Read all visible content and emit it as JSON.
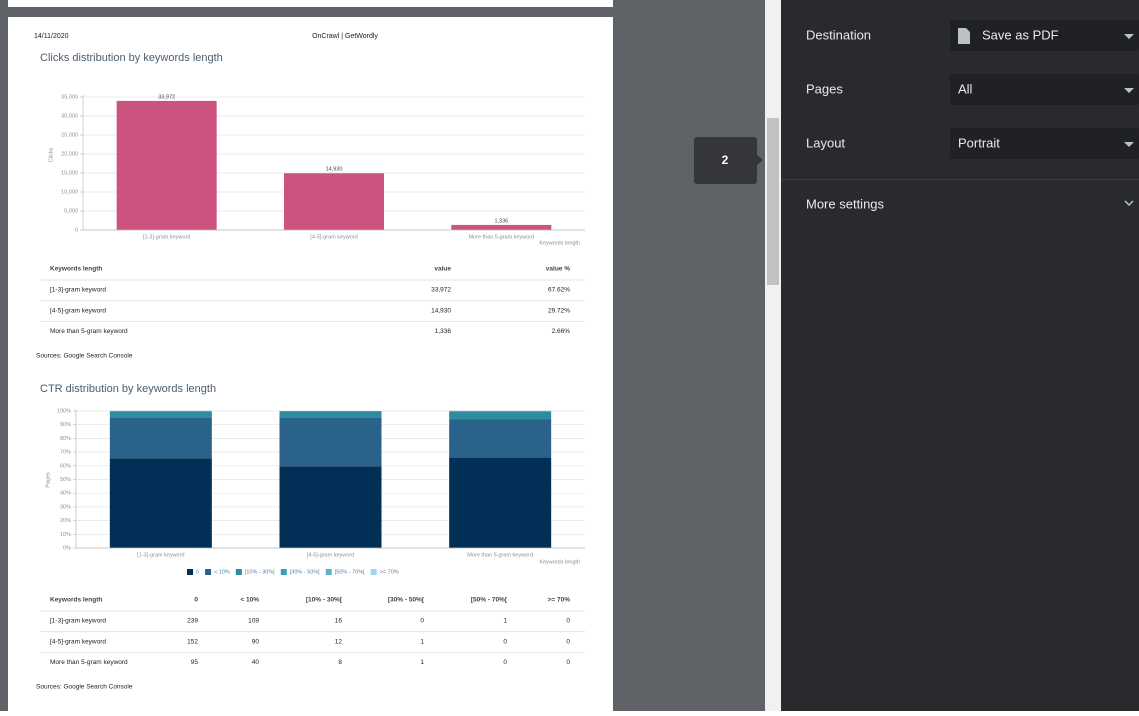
{
  "header": {
    "date": "14/11/2020",
    "site": "OnCrawl | GetWordly"
  },
  "clicks_chart": {
    "type": "bar",
    "title": "Clicks distribution by keywords length",
    "y_label": "Clicks",
    "x_label": "Keywords length",
    "categories": [
      "[1-3]-gram keyword",
      "[4-5]-gram keyword",
      "More than 5-gram keyword"
    ],
    "values": [
      33972,
      14930,
      1336
    ],
    "value_labels": [
      "33,972",
      "14,930",
      "1,336"
    ],
    "color": "#cc527f",
    "ylim": [
      0,
      35000
    ],
    "yticks": [
      0,
      {
        "value": 5000,
        "label": "5,000"
      },
      {
        "value": 10000,
        "label": "10,000"
      },
      {
        "value": 15000,
        "label": "15,000"
      },
      {
        "value": 20000,
        "label": "20,000"
      },
      {
        "value": 25000,
        "label": "25,000"
      },
      {
        "value": 30000,
        "label": "30,000"
      },
      {
        "value": 35000,
        "label": "35,000"
      }
    ],
    "grid": true
  },
  "clicks_table": {
    "headers": [
      "Keywords length",
      "value",
      "value %"
    ],
    "rows": [
      [
        "[1-3]-gram keyword",
        "33,972",
        "67.62%"
      ],
      [
        "[4-5]-gram keyword",
        "14,930",
        "29.72%"
      ],
      [
        "More than 5-gram keyword",
        "1,336",
        "2.66%"
      ]
    ]
  },
  "clicks_source": "Sources: Google Search Console",
  "ctr_chart": {
    "type": "stacked_bar",
    "title": "CTR distribution by keywords length",
    "y_label": "Pages",
    "x_label": "Keywords length",
    "categories": [
      "[1-3]-gram keyword",
      "[4-5]-gram keyword",
      "More than 5-gram keyword"
    ],
    "series": [
      {
        "name": "0",
        "color": "#012f56",
        "values": [
          65.5,
          59.6,
          66.0
        ]
      },
      {
        "name": "< 10%",
        "color": "#2b6289",
        "values": [
          29.9,
          35.3,
          27.8
        ]
      },
      {
        "name": "[10% - 30%[",
        "color": "#2d8c9e",
        "values": [
          4.4,
          4.7,
          5.6
        ]
      },
      {
        "name": "[30% - 50%[",
        "color": "#3aa0b5",
        "values": [
          0,
          0.4,
          0.7
        ]
      },
      {
        "name": "[50% - 70%[",
        "color": "#58b3cb",
        "values": [
          0.3,
          0,
          0
        ]
      },
      {
        "name": ">= 70%",
        "color": "#9fd8ee",
        "values": [
          0,
          0,
          0
        ]
      }
    ],
    "ylim": [
      0,
      100
    ],
    "yticks": [
      {
        "value": 0,
        "label": "0%"
      },
      {
        "value": 10,
        "label": "10%"
      },
      {
        "value": 20,
        "label": "20%"
      },
      {
        "value": 30,
        "label": "30%"
      },
      {
        "value": 40,
        "label": "40%"
      },
      {
        "value": 50,
        "label": "50%"
      },
      {
        "value": 60,
        "label": "60%"
      },
      {
        "value": 70,
        "label": "70%"
      },
      {
        "value": 80,
        "label": "80%"
      },
      {
        "value": 90,
        "label": "90%"
      },
      {
        "value": 100,
        "label": "100%"
      }
    ],
    "grid": true
  },
  "ctr_table": {
    "headers": [
      "Keywords length",
      "0",
      "< 10%",
      "[10% - 30%[",
      "[30% - 50%[",
      "[50% - 70%[",
      ">= 70%"
    ],
    "rows": [
      [
        "[1-3]-gram keyword",
        "239",
        "109",
        "16",
        "0",
        "1",
        "0"
      ],
      [
        "[4-5]-gram keyword",
        "152",
        "90",
        "12",
        "1",
        "0",
        "0"
      ],
      [
        "More than 5-gram keyword",
        "95",
        "40",
        "8",
        "1",
        "0",
        "0"
      ]
    ]
  },
  "ctr_source": "Sources: Google Search Console",
  "tooltip": "2",
  "settings": {
    "destination_label": "Destination",
    "destination": "Save as PDF",
    "pages_label": "Pages",
    "pages": "All",
    "layout_label": "Layout",
    "layout": "Portrait",
    "more": "More settings"
  }
}
